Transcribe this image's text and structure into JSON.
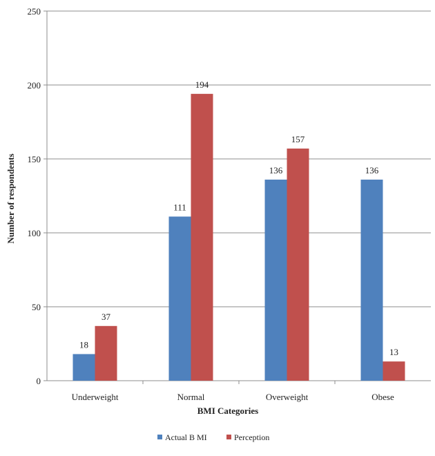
{
  "chart_data": {
    "type": "bar",
    "title": "",
    "xlabel": "BMI Categories",
    "ylabel": "Number  of respondents",
    "categories": [
      "Underweight",
      "Normal",
      "Overweight",
      "Obese"
    ],
    "series": [
      {
        "name": "Actual B MI",
        "values": [
          18,
          111,
          136,
          136
        ],
        "labels": [
          "18",
          "111",
          "136",
          "136"
        ],
        "color": "#4f81bd"
      },
      {
        "name": "Perception",
        "values": [
          37,
          194,
          157,
          13
        ],
        "labels": [
          "37",
          "194",
          "157",
          "13"
        ],
        "color": "#c0504d"
      }
    ],
    "ylim": [
      0,
      250
    ],
    "yticks": [
      0,
      50,
      100,
      150,
      200,
      250
    ],
    "ytick_labels": [
      "0",
      "50",
      "100",
      "150",
      "200",
      "250"
    ],
    "grid": true,
    "legend": "bottom"
  }
}
